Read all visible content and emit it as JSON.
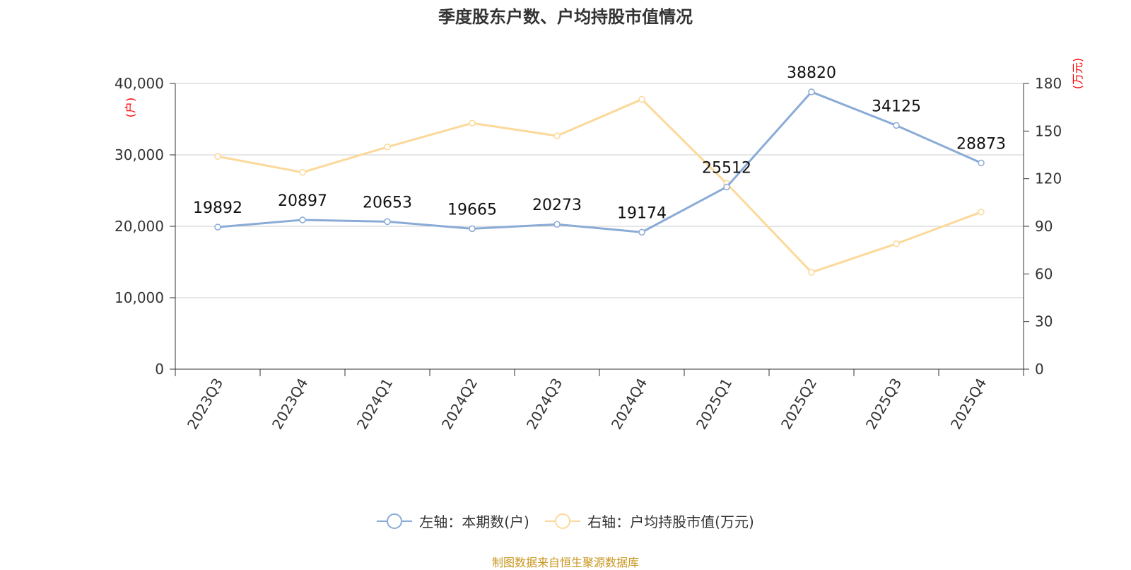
{
  "chart_data": {
    "type": "line",
    "title": "季度股东户数、户均持股市值情况",
    "categories": [
      "2023Q3",
      "2023Q4",
      "2024Q1",
      "2024Q2",
      "2024Q3",
      "2024Q4",
      "2025Q1",
      "2025Q2",
      "2025Q3",
      "2025Q4"
    ],
    "series": [
      {
        "name": "左轴：本期数(户)",
        "axis": "left",
        "color": "#8aabd6",
        "values": [
          19892,
          20897,
          20653,
          19665,
          20273,
          19174,
          25512,
          38820,
          34125,
          28873
        ],
        "labels": [
          "19892",
          "20897",
          "20653",
          "19665",
          "20273",
          "19174",
          "25512",
          "38820",
          "34125",
          "28873"
        ]
      },
      {
        "name": "右轴：户均持股市值(万元)",
        "axis": "right",
        "color": "#fcd99a",
        "values": [
          134,
          124,
          140,
          155,
          147,
          170,
          117,
          61,
          79,
          99
        ]
      }
    ],
    "left_axis": {
      "unit": "(户)",
      "ylim": [
        0,
        40000
      ],
      "ticks": [
        "0",
        "10,000",
        "20,000",
        "30,000",
        "40,000"
      ]
    },
    "right_axis": {
      "unit": "(万元)",
      "ylim": [
        0,
        180
      ],
      "ticks": [
        "0",
        "30",
        "60",
        "90",
        "120",
        "150",
        "180"
      ]
    },
    "grid": true,
    "legend_position": "bottom",
    "source": "制图数据来自恒生聚源数据库"
  }
}
